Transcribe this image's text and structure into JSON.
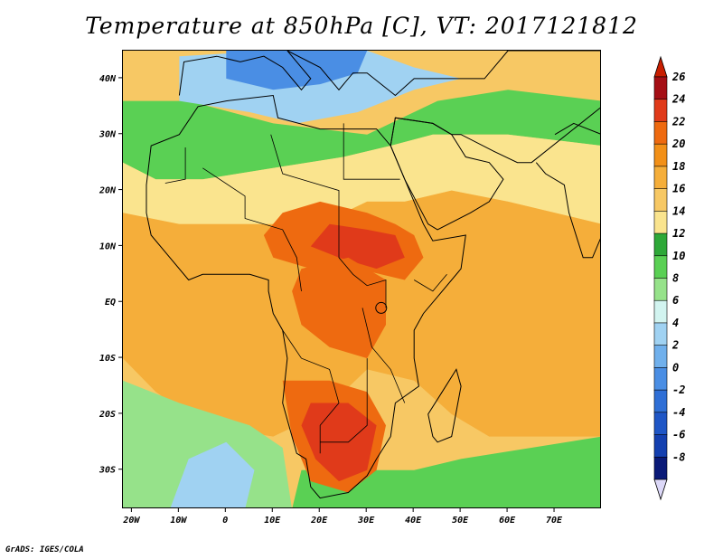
{
  "title": "Temperature at 850hPa [C], VT: 2017121812",
  "footer": "GrADS: IGES/COLA",
  "lon_labels": [
    "20W",
    "10W",
    "0",
    "10E",
    "20E",
    "30E",
    "40E",
    "50E",
    "60E",
    "70E"
  ],
  "lon_values": [
    -20,
    -10,
    0,
    10,
    20,
    30,
    40,
    50,
    60,
    70
  ],
  "lat_labels": [
    "40N",
    "30N",
    "20N",
    "10N",
    "EQ",
    "10S",
    "20S",
    "30S"
  ],
  "lat_values": [
    40,
    30,
    20,
    10,
    0,
    -10,
    -20,
    -30
  ],
  "map_extent": {
    "lon": [
      -22,
      80
    ],
    "lat": [
      -37,
      45
    ]
  },
  "legend": {
    "labels": [
      "26",
      "24",
      "22",
      "20",
      "18",
      "16",
      "14",
      "12",
      "10",
      "8",
      "6",
      "4",
      "2",
      "0",
      "-2",
      "-4",
      "-6",
      "-8"
    ],
    "levels": [
      26,
      24,
      22,
      20,
      18,
      16,
      14,
      12,
      10,
      8,
      6,
      4,
      2,
      0,
      -2,
      -4,
      -6,
      -8
    ],
    "colors": [
      "#a50f15",
      "#e03a1a",
      "#ee6a10",
      "#f29018",
      "#f5ae3a",
      "#f7c864",
      "#fae48e",
      "#2ea838",
      "#5ad054",
      "#96e28a",
      "#d2f4f0",
      "#a0d2f2",
      "#70b0ec",
      "#4a8ee4",
      "#2f6fd6",
      "#1f56c6",
      "#1440b0",
      "#0a1a78"
    ],
    "cap_top": "#c81e00",
    "cap_bottom": "#dcd8f8"
  },
  "fields": [
    {
      "name": "sahara-cold",
      "color": "#5ad054",
      "pts": [
        [
          -22,
          25
        ],
        [
          -22,
          36
        ],
        [
          -8,
          36
        ],
        [
          10,
          32
        ],
        [
          30,
          30
        ],
        [
          45,
          36
        ],
        [
          60,
          38
        ],
        [
          80,
          36
        ],
        [
          80,
          28
        ],
        [
          60,
          30
        ],
        [
          44,
          30
        ],
        [
          35,
          28
        ],
        [
          25,
          26
        ],
        [
          10,
          24
        ],
        [
          -5,
          22
        ],
        [
          -15,
          22
        ]
      ]
    },
    {
      "name": "sahara-warm",
      "color": "#fae48e",
      "pts": [
        [
          -22,
          16
        ],
        [
          -22,
          25
        ],
        [
          -15,
          22
        ],
        [
          -5,
          22
        ],
        [
          10,
          24
        ],
        [
          25,
          26
        ],
        [
          35,
          28
        ],
        [
          44,
          30
        ],
        [
          60,
          30
        ],
        [
          80,
          28
        ],
        [
          80,
          14
        ],
        [
          60,
          18
        ],
        [
          48,
          20
        ],
        [
          38,
          18
        ],
        [
          30,
          18
        ],
        [
          20,
          14
        ],
        [
          5,
          14
        ],
        [
          -10,
          14
        ]
      ]
    },
    {
      "name": "mediterranean",
      "color": "#a0d2f2",
      "pts": [
        [
          -10,
          36
        ],
        [
          -10,
          44
        ],
        [
          10,
          45
        ],
        [
          30,
          45
        ],
        [
          40,
          42
        ],
        [
          50,
          40
        ],
        [
          40,
          38
        ],
        [
          28,
          34
        ],
        [
          15,
          32
        ],
        [
          5,
          34
        ]
      ]
    },
    {
      "name": "north-blue",
      "color": "#4a8ee4",
      "pts": [
        [
          0,
          40
        ],
        [
          0,
          45
        ],
        [
          30,
          45
        ],
        [
          28,
          41
        ],
        [
          20,
          39
        ],
        [
          10,
          38
        ]
      ]
    },
    {
      "name": "tropical-belt",
      "color": "#f5ae3a",
      "pts": [
        [
          -22,
          -10
        ],
        [
          -22,
          16
        ],
        [
          -10,
          14
        ],
        [
          5,
          14
        ],
        [
          20,
          14
        ],
        [
          30,
          18
        ],
        [
          38,
          18
        ],
        [
          48,
          20
        ],
        [
          60,
          18
        ],
        [
          80,
          14
        ],
        [
          80,
          -24
        ],
        [
          56,
          -24
        ],
        [
          48,
          -20
        ],
        [
          40,
          -14
        ],
        [
          30,
          -12
        ],
        [
          20,
          -20
        ],
        [
          10,
          -24
        ],
        [
          -5,
          -22
        ],
        [
          -15,
          -16
        ]
      ]
    },
    {
      "name": "west-ocean-green",
      "color": "#96e28a",
      "pts": [
        [
          -22,
          -37
        ],
        [
          -22,
          -14
        ],
        [
          -10,
          -18
        ],
        [
          5,
          -22
        ],
        [
          12,
          -26
        ],
        [
          14,
          -37
        ]
      ]
    },
    {
      "name": "west-ocean-blue",
      "color": "#a0d2f2",
      "pts": [
        [
          -12,
          -37
        ],
        [
          -8,
          -28
        ],
        [
          0,
          -25
        ],
        [
          6,
          -30
        ],
        [
          4,
          -37
        ]
      ]
    },
    {
      "name": "south-ocean-green",
      "color": "#5ad054",
      "pts": [
        [
          14,
          -37
        ],
        [
          16,
          -30
        ],
        [
          40,
          -30
        ],
        [
          50,
          -28
        ],
        [
          80,
          -24
        ],
        [
          80,
          -37
        ]
      ]
    },
    {
      "name": "sahel-hot",
      "color": "#ee6a10",
      "pts": [
        [
          8,
          12
        ],
        [
          12,
          16
        ],
        [
          20,
          18
        ],
        [
          30,
          16
        ],
        [
          36,
          14
        ],
        [
          40,
          12
        ],
        [
          42,
          8
        ],
        [
          38,
          4
        ],
        [
          28,
          6
        ],
        [
          18,
          6
        ],
        [
          10,
          8
        ]
      ]
    },
    {
      "name": "sudan-hot",
      "color": "#e03a1a",
      "pts": [
        [
          18,
          10
        ],
        [
          22,
          14
        ],
        [
          30,
          13
        ],
        [
          36,
          12
        ],
        [
          38,
          8
        ],
        [
          32,
          6
        ],
        [
          24,
          8
        ]
      ]
    },
    {
      "name": "congo-warm",
      "color": "#ee6a10",
      "pts": [
        [
          16,
          6
        ],
        [
          26,
          8
        ],
        [
          34,
          4
        ],
        [
          34,
          -4
        ],
        [
          30,
          -10
        ],
        [
          22,
          -8
        ],
        [
          16,
          -4
        ],
        [
          14,
          2
        ]
      ]
    },
    {
      "name": "kalahari-warm",
      "color": "#ee6a10",
      "pts": [
        [
          12,
          -14
        ],
        [
          22,
          -14
        ],
        [
          30,
          -16
        ],
        [
          34,
          -22
        ],
        [
          32,
          -30
        ],
        [
          26,
          -34
        ],
        [
          18,
          -32
        ],
        [
          14,
          -24
        ]
      ]
    },
    {
      "name": "kalahari-hot",
      "color": "#e03a1a",
      "pts": [
        [
          18,
          -18
        ],
        [
          26,
          -18
        ],
        [
          32,
          -22
        ],
        [
          30,
          -30
        ],
        [
          24,
          -32
        ],
        [
          19,
          -28
        ],
        [
          16,
          -22
        ]
      ]
    }
  ],
  "coast": [
    [
      -17,
      21
    ],
    [
      -16,
      28
    ],
    [
      -10,
      30
    ],
    [
      -6,
      35
    ],
    [
      0,
      36
    ],
    [
      10,
      37
    ],
    [
      11,
      33
    ],
    [
      20,
      31
    ],
    [
      25,
      31
    ],
    [
      32,
      31
    ],
    [
      35,
      28
    ],
    [
      38,
      22
    ],
    [
      42,
      14
    ],
    [
      44,
      11
    ],
    [
      51,
      12
    ],
    [
      50,
      6
    ],
    [
      46,
      2
    ],
    [
      42,
      -2
    ],
    [
      40,
      -5
    ],
    [
      40,
      -10
    ],
    [
      41,
      -15
    ],
    [
      36,
      -18
    ],
    [
      35,
      -24
    ],
    [
      32,
      -28
    ],
    [
      30,
      -31
    ],
    [
      26,
      -34
    ],
    [
      20,
      -35
    ],
    [
      18,
      -33
    ],
    [
      17,
      -28
    ],
    [
      15,
      -27
    ],
    [
      12,
      -18
    ],
    [
      13,
      -10
    ],
    [
      12,
      -5
    ],
    [
      10,
      -2
    ],
    [
      9,
      2
    ],
    [
      9,
      4
    ],
    [
      5,
      5
    ],
    [
      0,
      5
    ],
    [
      -5,
      5
    ],
    [
      -8,
      4
    ],
    [
      -12,
      8
    ],
    [
      -16,
      12
    ],
    [
      -17,
      16
    ]
  ],
  "arabia": [
    [
      35,
      28
    ],
    [
      36,
      33
    ],
    [
      44,
      32
    ],
    [
      48,
      30
    ],
    [
      51,
      26
    ],
    [
      56,
      25
    ],
    [
      59,
      22
    ],
    [
      56,
      18
    ],
    [
      52,
      16
    ],
    [
      45,
      13
    ],
    [
      43,
      14
    ],
    [
      38,
      22
    ]
  ],
  "madagascar": [
    [
      44,
      -24
    ],
    [
      45,
      -25
    ],
    [
      48,
      -24
    ],
    [
      50,
      -15
    ],
    [
      49,
      -12
    ],
    [
      46,
      -16
    ],
    [
      43,
      -20
    ]
  ],
  "india": [
    [
      66,
      25
    ],
    [
      68,
      23
    ],
    [
      72,
      21
    ],
    [
      73,
      16
    ],
    [
      76,
      8
    ],
    [
      78,
      8
    ],
    [
      80,
      12
    ],
    [
      80,
      22
    ],
    [
      80,
      30
    ],
    [
      74,
      32
    ],
    [
      70,
      30
    ]
  ],
  "europe": [
    [
      -10,
      37
    ],
    [
      -9,
      43
    ],
    [
      -2,
      44
    ],
    [
      3,
      43
    ],
    [
      8,
      44
    ],
    [
      12,
      42
    ],
    [
      16,
      38
    ],
    [
      18,
      40
    ],
    [
      13,
      45
    ],
    [
      20,
      42
    ],
    [
      24,
      38
    ],
    [
      27,
      41
    ],
    [
      30,
      41
    ],
    [
      36,
      37
    ],
    [
      40,
      40
    ],
    [
      50,
      40
    ],
    [
      55,
      40
    ],
    [
      60,
      45
    ],
    [
      80,
      45
    ],
    [
      80,
      35
    ],
    [
      65,
      25
    ],
    [
      62,
      25
    ],
    [
      57,
      27
    ],
    [
      50,
      30
    ],
    [
      48,
      30
    ],
    [
      44,
      32
    ],
    [
      36,
      33
    ],
    [
      35,
      28
    ]
  ]
}
